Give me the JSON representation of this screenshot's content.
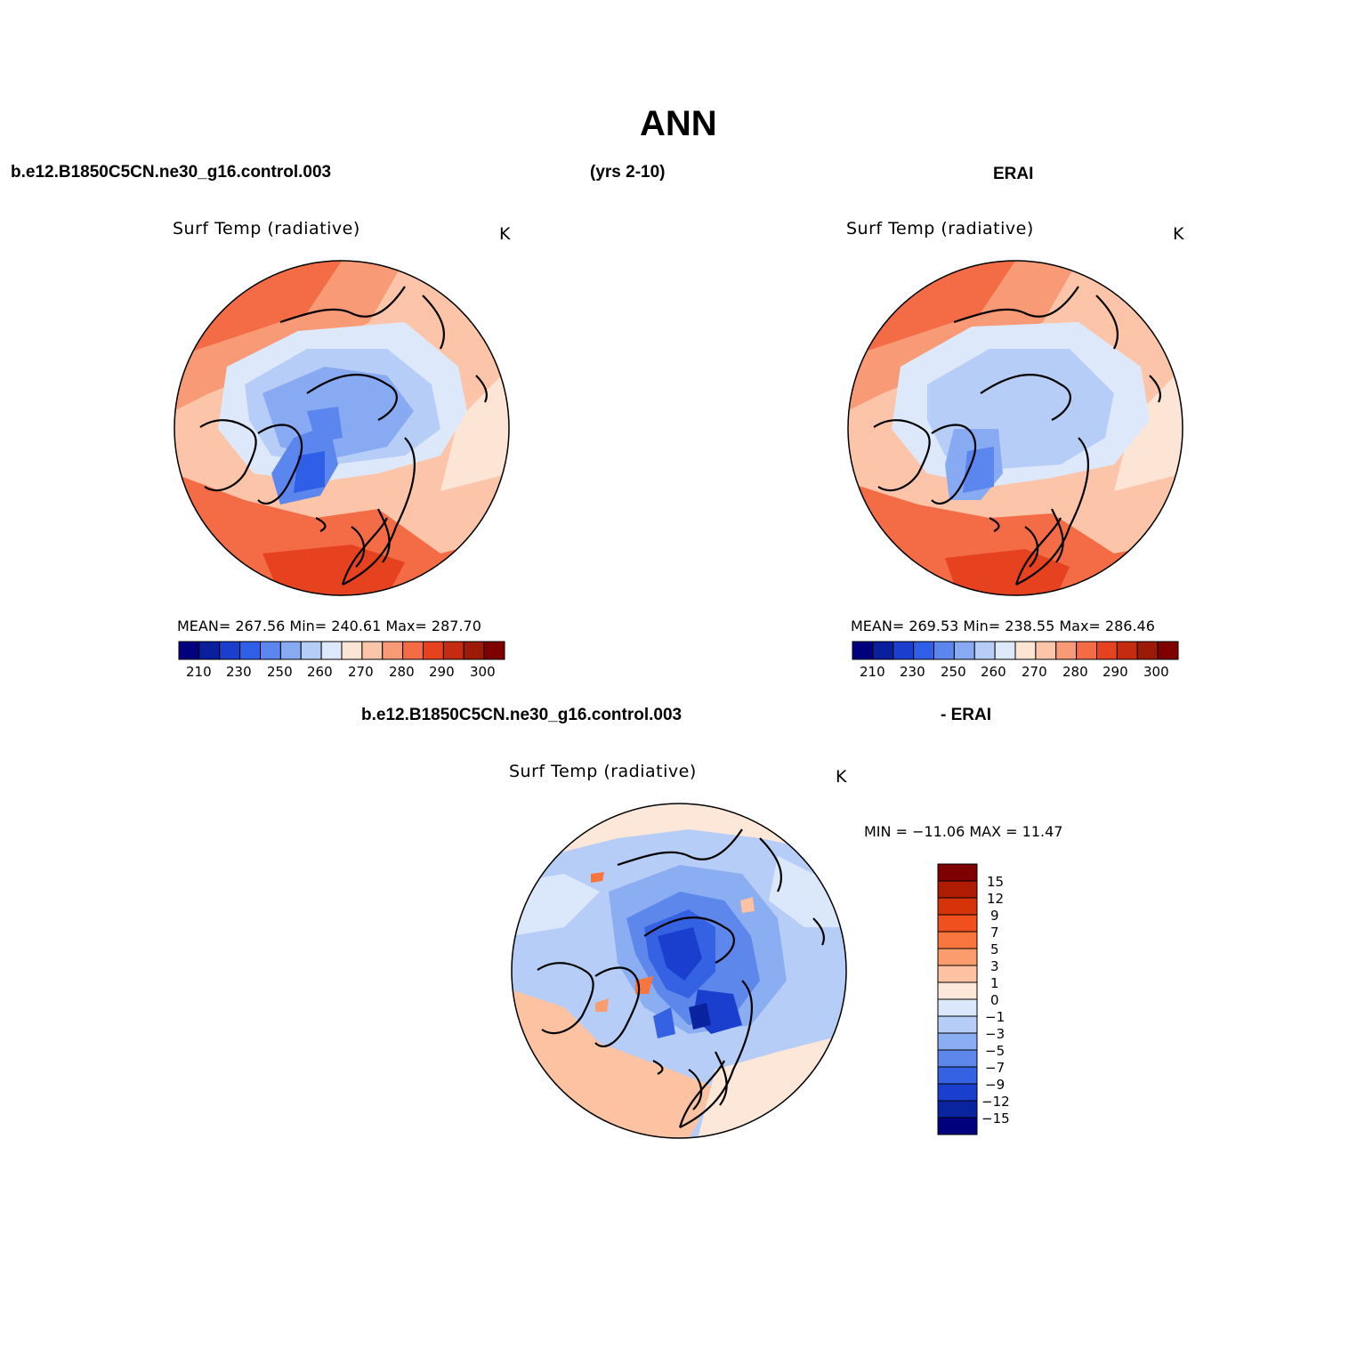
{
  "figure": {
    "title": "ANN",
    "model_case": "b.e12.B1850C5CN.ne30_g16.control.003",
    "years": "(yrs 2-10)",
    "obs_name": "ERAI",
    "diff_case": "b.e12.B1850C5CN.ne30_g16.control.003",
    "diff_suffix": "- ERAI"
  },
  "panels": [
    {
      "id": "model",
      "variable": "Surf Temp (radiative)",
      "units": "K",
      "stats": "MEAN= 267.56   Min= 240.61   Max= 287.70"
    },
    {
      "id": "obs",
      "variable": "Surf Temp (radiative)",
      "units": "K",
      "stats": "MEAN= 269.53   Min= 238.55   Max= 286.46"
    },
    {
      "id": "diff",
      "variable": "Surf Temp (radiative)",
      "units": "K",
      "stats": "MIN = −11.06 MAX =  11.47"
    }
  ],
  "abs_colorbar": {
    "colors": [
      "#00007f",
      "#0a1f9e",
      "#1a3fcf",
      "#2f5fe6",
      "#5a86ee",
      "#87aaf3",
      "#b6cdf7",
      "#dde9fb",
      "#fde5d6",
      "#fcc4a8",
      "#f99a76",
      "#f36c46",
      "#e6421f",
      "#c52b10",
      "#9c1a08",
      "#7f0000"
    ],
    "ticks": [
      "210",
      "230",
      "250",
      "260",
      "270",
      "280",
      "290",
      "300"
    ]
  },
  "diff_colorbar": {
    "colors": [
      "#7f0000",
      "#b01b03",
      "#d6330b",
      "#f0501e",
      "#f8763e",
      "#fb9c6c",
      "#fcc2a2",
      "#fde7d8",
      "#dbe8fb",
      "#b6cdf7",
      "#8badf2",
      "#5e87eb",
      "#3562e3",
      "#1a3fcf",
      "#0a249f",
      "#00007f"
    ],
    "labels": [
      "15",
      "12",
      "9",
      "7",
      "5",
      "3",
      "1",
      "0",
      "−1",
      "−3",
      "−5",
      "−7",
      "−9",
      "−12",
      "−15"
    ]
  }
}
